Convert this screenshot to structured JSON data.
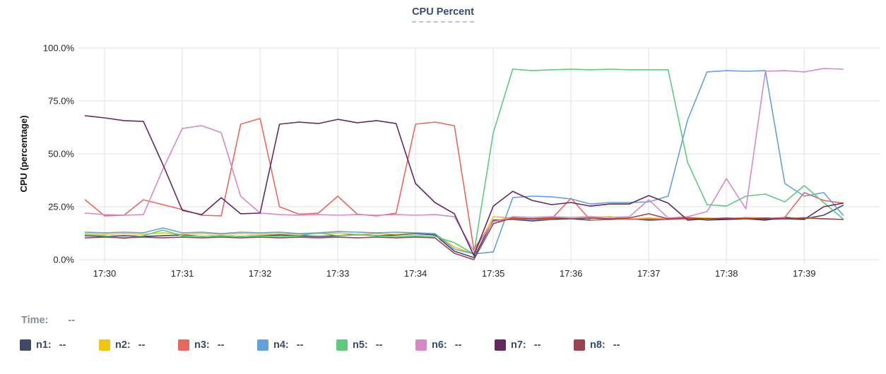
{
  "time_row": {
    "label": "Time:",
    "value": "--"
  },
  "legend": {
    "label_suffix": ":",
    "value_placeholder": "--"
  },
  "colors": {
    "background": "#ffffff",
    "title": "#3b4a6b",
    "title_underline": "#b9c2de",
    "grid": "#e6e6e6",
    "tick_text": "#262626",
    "axis_title_text": "#111111",
    "time_label": "#878c96",
    "legend_label": "#3a4a6b"
  },
  "chart_data": {
    "type": "line",
    "title": "CPU Percent",
    "ylabel": "CPU (percentage)",
    "ylim": [
      0,
      100
    ],
    "yticks": [
      0,
      25,
      50,
      75,
      100
    ],
    "ytick_labels": [
      "0.0%",
      "25.0%",
      "50.0%",
      "75.0%",
      "100.0%"
    ],
    "xlim_minutes": [
      29.7,
      39.97
    ],
    "xticks_minutes": [
      30,
      31,
      32,
      33,
      34,
      35,
      36,
      37,
      38,
      39
    ],
    "xtick_labels": [
      "17:30",
      "17:31",
      "17:32",
      "17:33",
      "17:34",
      "17:35",
      "17:36",
      "17:37",
      "17:38",
      "17:39"
    ],
    "grid": true,
    "legend_position": "bottom",
    "x_minutes": [
      29.75,
      30,
      30.25,
      30.5,
      30.75,
      31,
      31.25,
      31.5,
      31.75,
      32,
      32.25,
      32.5,
      32.75,
      33,
      33.25,
      33.5,
      33.75,
      34,
      34.25,
      34.5,
      34.75,
      35,
      35.25,
      35.5,
      35.75,
      36,
      36.25,
      36.5,
      36.75,
      37,
      37.25,
      37.5,
      37.75,
      38,
      38.25,
      38.5,
      38.75,
      39,
      39.25,
      39.5
    ],
    "series": [
      {
        "name": "n1",
        "color": "#3e4a66",
        "values": [
          11.3,
          11,
          11.3,
          11,
          11.3,
          11.7,
          11,
          11.3,
          11,
          11.3,
          11.7,
          11.3,
          11,
          11.3,
          12,
          11.3,
          11.7,
          12.3,
          11.7,
          4,
          1,
          18.7,
          19,
          18.3,
          19,
          19.3,
          18.7,
          19,
          19.3,
          18.7,
          19,
          19.7,
          18.7,
          19,
          19.3,
          18.7,
          20,
          19.3,
          21,
          25.7
        ]
      },
      {
        "name": "n2",
        "color": "#f3c317",
        "values": [
          12.3,
          12,
          12.3,
          12,
          12.7,
          12,
          12.3,
          12,
          12.3,
          12,
          12.3,
          12,
          12.3,
          12.7,
          12,
          12.3,
          12,
          12.7,
          12.3,
          6,
          2.7,
          20.3,
          19.7,
          19.3,
          20,
          19.3,
          19.7,
          20.3,
          19.3,
          19.7,
          19.3,
          20,
          19.7,
          19.3,
          20,
          19.7,
          19.3,
          20,
          19.3,
          19
        ]
      },
      {
        "name": "n3",
        "color": "#e5695e",
        "values": [
          28.3,
          20.7,
          21,
          28.3,
          26,
          23.7,
          21,
          20.7,
          64,
          66.7,
          25,
          21.5,
          22,
          30,
          21.5,
          20.7,
          22,
          64,
          65,
          63.3,
          5,
          18,
          19.3,
          19,
          19.3,
          29,
          18.7,
          19.3,
          19,
          19.3,
          19,
          19.3,
          19,
          19.3,
          19.7,
          19.3,
          20,
          31.7,
          28,
          26.7
        ]
      },
      {
        "name": "n4",
        "color": "#64a0da",
        "values": [
          13,
          12.7,
          13,
          12.7,
          15,
          12.7,
          13,
          12.3,
          13,
          12.7,
          13,
          12.3,
          12.7,
          13.3,
          13,
          12.7,
          13,
          12.7,
          12.3,
          5,
          2.7,
          3.7,
          29.3,
          30,
          29.7,
          28.7,
          26.3,
          27,
          27,
          27.3,
          30,
          66,
          88.7,
          89.3,
          89,
          89.3,
          36,
          30,
          31.7,
          21
        ]
      },
      {
        "name": "n5",
        "color": "#5fca7b",
        "values": [
          11.7,
          11.3,
          10,
          11.3,
          14,
          11.3,
          11,
          11.3,
          11,
          11.3,
          11,
          11.3,
          12.7,
          11.3,
          11.7,
          11.3,
          11,
          11.3,
          11,
          8,
          2.7,
          60,
          90,
          89.3,
          89.7,
          90,
          89.7,
          90,
          89.7,
          89.7,
          89.7,
          46,
          26,
          25.3,
          30,
          31,
          27.3,
          35,
          27,
          19.3
        ]
      },
      {
        "name": "n6",
        "color": "#d689c6",
        "values": [
          22,
          21.3,
          21,
          21.3,
          42.7,
          62,
          63.3,
          60,
          30,
          22,
          21.3,
          21,
          21.3,
          21,
          21.3,
          21,
          21.3,
          21,
          21.3,
          20.3,
          4,
          18,
          20.3,
          20,
          20.3,
          20,
          20.3,
          20,
          20.3,
          28.3,
          19.7,
          20.3,
          22.7,
          38.3,
          24,
          89,
          89.3,
          88.7,
          90.3,
          90
        ]
      },
      {
        "name": "n7",
        "color": "#632a60",
        "values": [
          68,
          67,
          65.7,
          65.3,
          45,
          23.3,
          21.3,
          29.3,
          21.7,
          22,
          64,
          65,
          64.3,
          66.3,
          64.7,
          65.7,
          64.3,
          36,
          27,
          21.7,
          2,
          25.3,
          32.3,
          28,
          26,
          27,
          25.3,
          26.3,
          26.3,
          30.3,
          26.7,
          18.7,
          19.3,
          19,
          19.3,
          19,
          19.3,
          19,
          25,
          26.7
        ]
      },
      {
        "name": "n8",
        "color": "#9d4152",
        "values": [
          10.3,
          10.7,
          10.3,
          10.7,
          10.3,
          10.7,
          10.3,
          10.7,
          10.3,
          10.7,
          10.3,
          10.7,
          10.3,
          10.7,
          10.3,
          10.7,
          10.3,
          10.7,
          10.3,
          3,
          0,
          17,
          19.7,
          19.3,
          19.7,
          19.3,
          19.7,
          19.3,
          19.7,
          21.7,
          19.3,
          19.7,
          19.3,
          19.7,
          19.3,
          19.7,
          19.3,
          19.7,
          19.3,
          19
        ]
      }
    ]
  }
}
